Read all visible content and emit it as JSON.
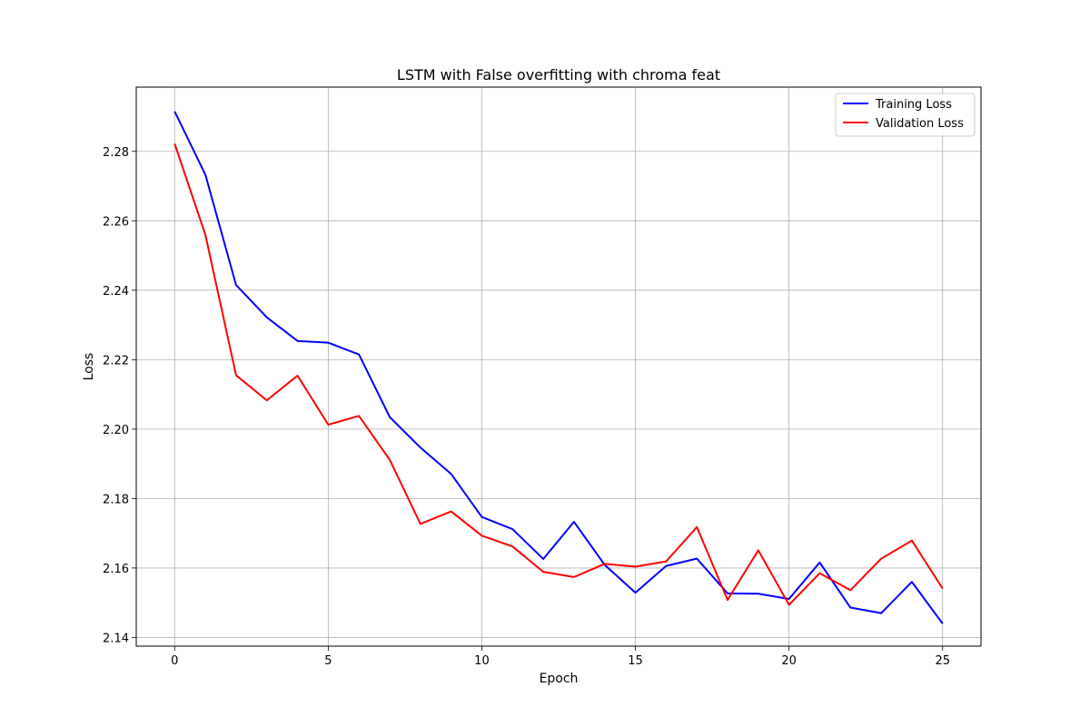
{
  "chart_data": {
    "type": "line",
    "title": "LSTM with False overfitting with chroma feat",
    "xlabel": "Epoch",
    "ylabel": "Loss",
    "xlim": [
      -1.25,
      26.25
    ],
    "ylim": [
      2.1375,
      2.2985
    ],
    "xticks": [
      0,
      5,
      10,
      15,
      20,
      25
    ],
    "yticks": [
      2.14,
      2.16,
      2.18,
      2.2,
      2.22,
      2.24,
      2.26,
      2.28
    ],
    "ytick_labels": [
      "2.14",
      "2.16",
      "2.18",
      "2.20",
      "2.22",
      "2.24",
      "2.26",
      "2.28"
    ],
    "grid": true,
    "legend_position": "top-right",
    "x": [
      0,
      1,
      2,
      3,
      4,
      5,
      6,
      7,
      8,
      9,
      10,
      11,
      12,
      13,
      14,
      15,
      16,
      17,
      18,
      19,
      20,
      21,
      22,
      23,
      24,
      25
    ],
    "series": [
      {
        "name": "Training Loss",
        "color": "#0000ff",
        "values": [
          2.2915,
          2.2733,
          2.2415,
          2.2322,
          2.2254,
          2.2249,
          2.2215,
          2.2035,
          2.1947,
          2.1871,
          2.1747,
          2.1712,
          2.1626,
          2.1733,
          2.1609,
          2.1529,
          2.1606,
          2.1627,
          2.1527,
          2.1526,
          2.1511,
          2.1616,
          2.1486,
          2.147,
          2.156,
          2.144
        ]
      },
      {
        "name": "Validation Loss",
        "color": "#ff0000",
        "values": [
          2.2822,
          2.256,
          2.2155,
          2.2083,
          2.2154,
          2.2013,
          2.2038,
          2.1912,
          2.1727,
          2.1763,
          2.1693,
          2.1662,
          2.1589,
          2.1574,
          2.1612,
          2.1604,
          2.1619,
          2.1718,
          2.1508,
          2.1651,
          2.1494,
          2.1585,
          2.1536,
          2.1627,
          2.1679,
          2.1541
        ]
      }
    ]
  }
}
